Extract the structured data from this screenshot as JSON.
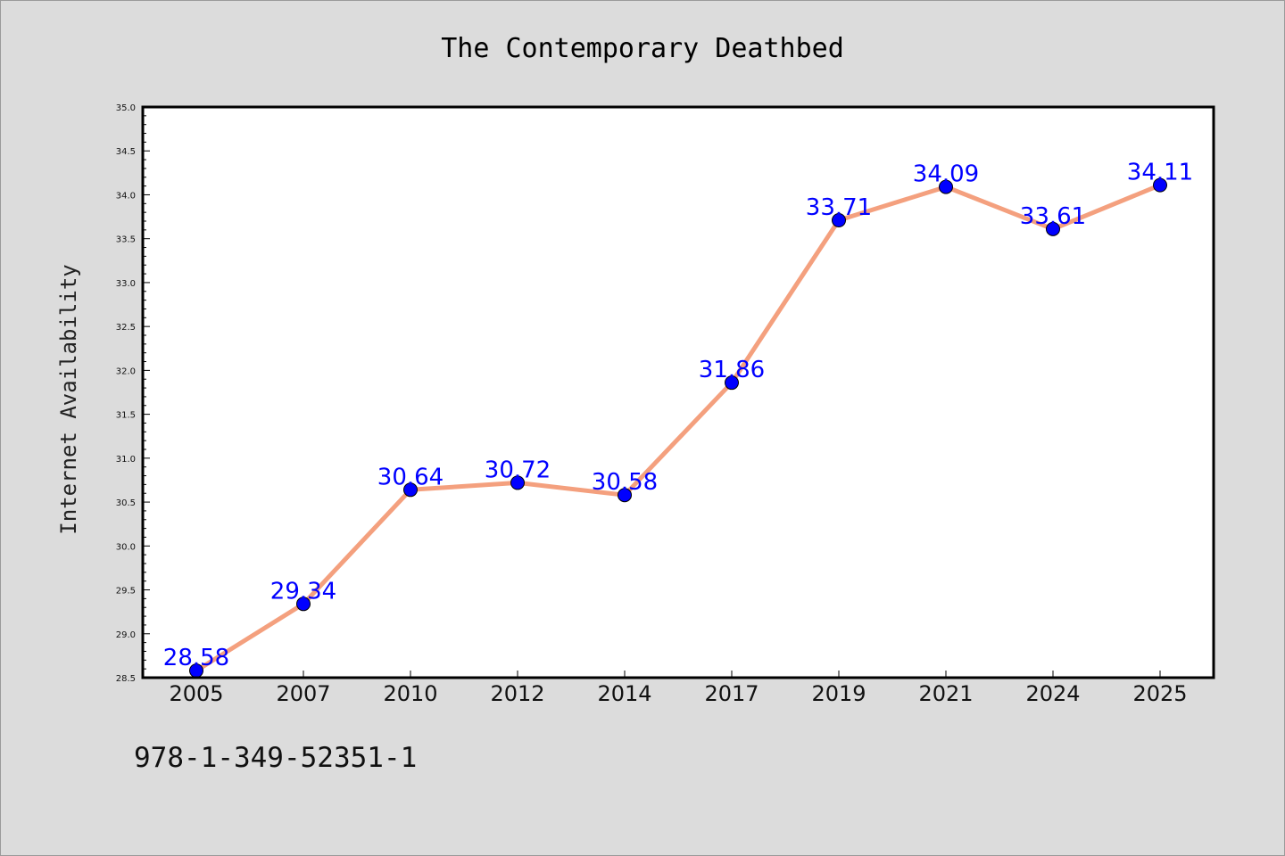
{
  "isbn": "978-1-349-52351-1",
  "colors": {
    "background": "#dcdcdc",
    "plot_background": "#ffffff",
    "line": "#f4a07e",
    "marker": "#0000ff",
    "data_label": "#0000ff"
  },
  "chart_data": {
    "type": "line",
    "title": "The Contemporary Deathbed",
    "xlabel": "",
    "ylabel": "Internet Availability",
    "categories": [
      "2005",
      "2007",
      "2010",
      "2012",
      "2014",
      "2017",
      "2019",
      "2021",
      "2024",
      "2025"
    ],
    "series": [
      {
        "values": [
          28.58,
          29.34,
          30.64,
          30.72,
          30.58,
          31.86,
          33.71,
          34.09,
          33.61,
          34.11
        ]
      }
    ],
    "data_labels": [
      "28.58",
      "29.34",
      "30.64",
      "30.72",
      "30.58",
      "31.86",
      "33.71",
      "34.09",
      "33.61",
      "34.11"
    ],
    "ylim": [
      28.5,
      35.0
    ],
    "yticks": [
      "28.5",
      "29.0",
      "29.5",
      "30.0",
      "30.5",
      "31.0",
      "31.5",
      "32.0",
      "32.5",
      "33.0",
      "33.5",
      "34.0",
      "34.5",
      "35.0"
    ],
    "grid": false,
    "legend": "none"
  }
}
